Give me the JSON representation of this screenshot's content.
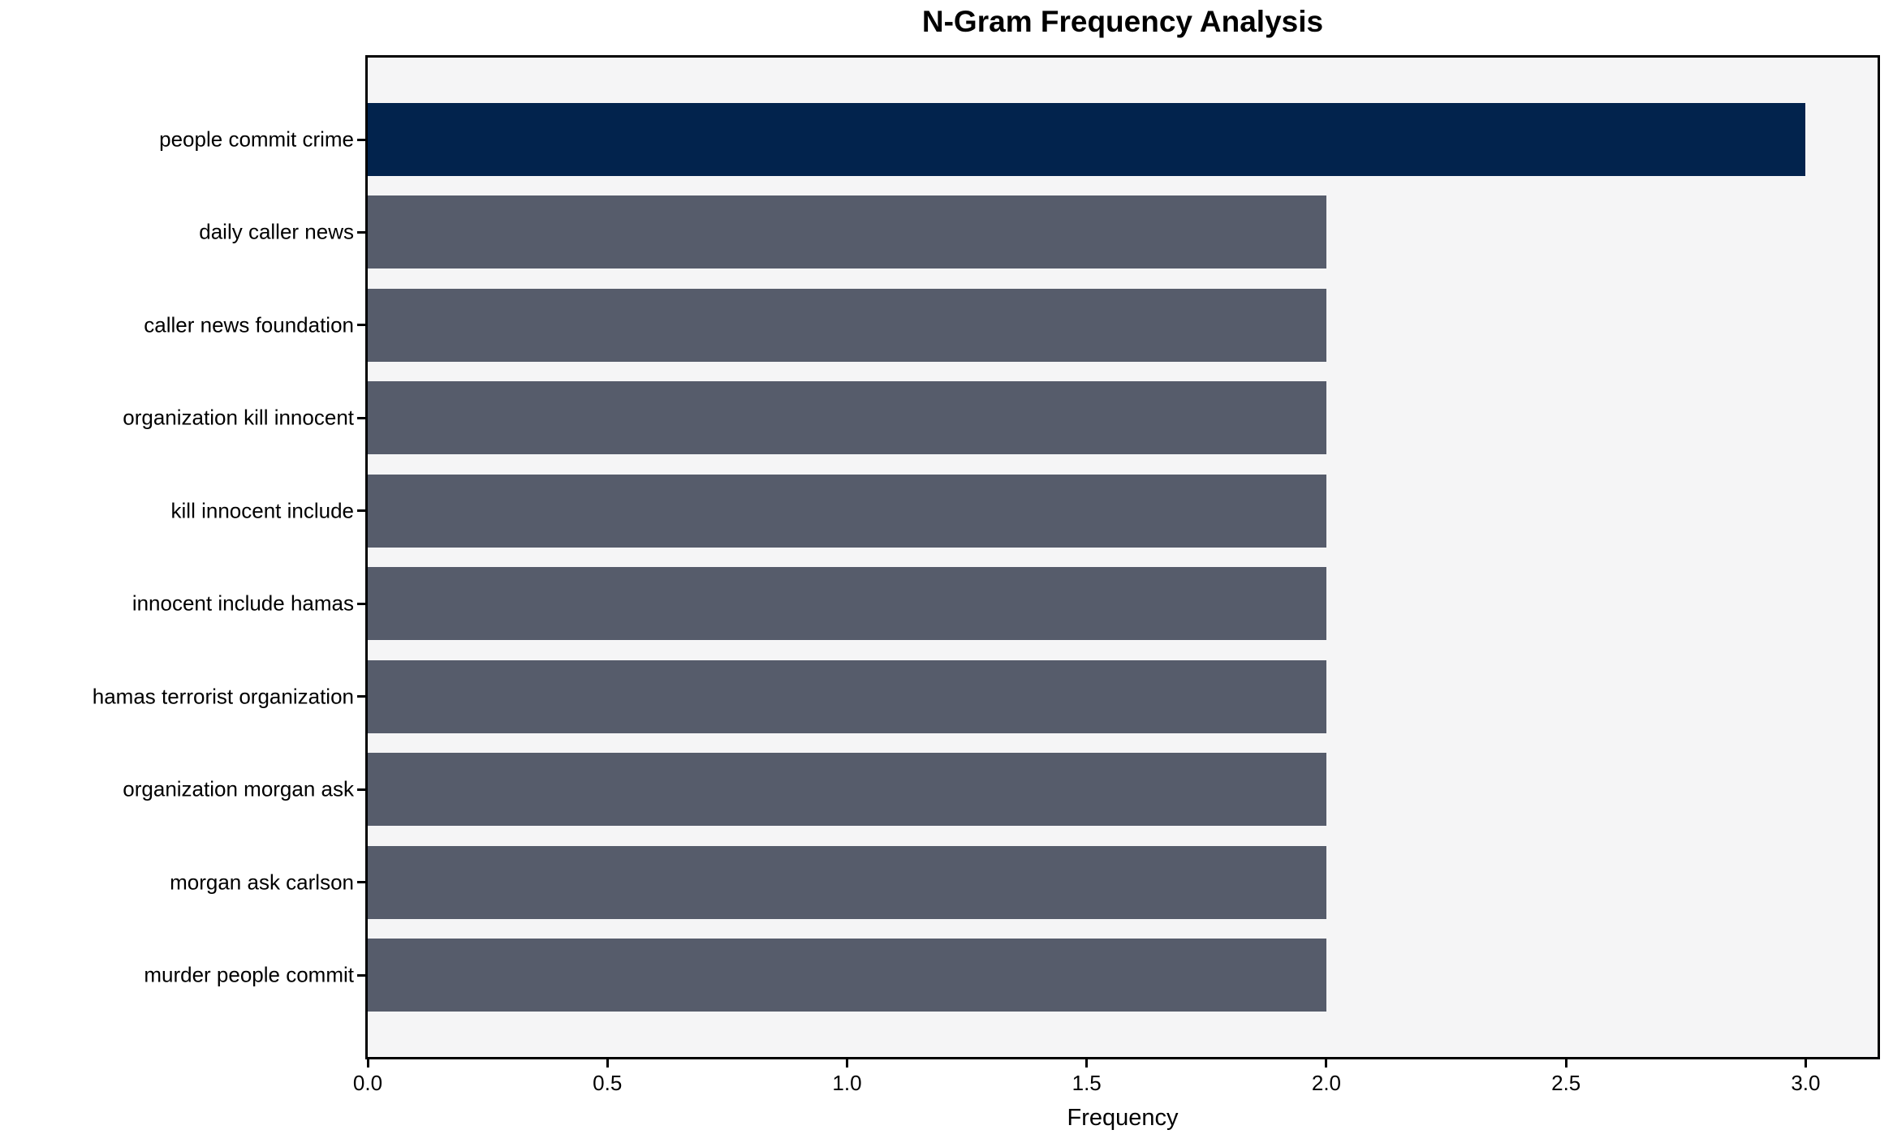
{
  "chart_data": {
    "type": "bar",
    "orientation": "horizontal",
    "title": "N-Gram Frequency Analysis",
    "xlabel": "Frequency",
    "ylabel": "",
    "categories": [
      "people commit crime",
      "daily caller news",
      "caller news foundation",
      "organization kill innocent",
      "kill innocent include",
      "innocent include hamas",
      "hamas terrorist organization",
      "organization morgan ask",
      "morgan ask carlson",
      "murder people commit"
    ],
    "values": [
      3,
      2,
      2,
      2,
      2,
      2,
      2,
      2,
      2,
      2
    ],
    "xlim": [
      0,
      3.15
    ],
    "x_ticks": [
      0.0,
      0.5,
      1.0,
      1.5,
      2.0,
      2.5,
      3.0
    ],
    "x_tick_labels": [
      "0.0",
      "0.5",
      "1.0",
      "1.5",
      "2.0",
      "2.5",
      "3.0"
    ],
    "grid": false,
    "legend": null,
    "highlight_index": 0,
    "colors": {
      "bar_highlight": "#02234d",
      "bar_default": "#565c6b",
      "plot_background": "#f5f5f6",
      "figure_background": "#ffffff",
      "spine": "#000000",
      "text": "#000000"
    }
  }
}
